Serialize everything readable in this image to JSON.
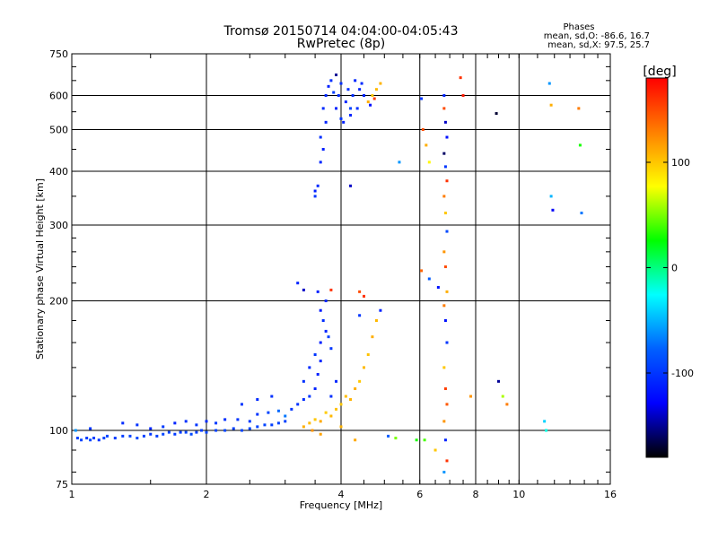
{
  "chart_data": {
    "type": "scatter",
    "title": "Tromsø 20150714 04:04:00-04:05:43",
    "subtitle": "RwPretec (8p)",
    "xlabel": "Frequency [MHz]",
    "ylabel": "Stationary phase Virtual Height [km]",
    "x_scale": "log",
    "y_scale": "log",
    "xlim": [
      1,
      16
    ],
    "ylim": [
      75,
      750
    ],
    "x_ticks": [
      1,
      2,
      4,
      6,
      8,
      10,
      16
    ],
    "x_tick_labels": [
      "1",
      "2",
      "4",
      "6",
      "8",
      "10",
      "16"
    ],
    "y_ticks": [
      75,
      100,
      200,
      300,
      400,
      500,
      600,
      750
    ],
    "y_tick_labels": [
      "75",
      "100",
      "200",
      "300",
      "400",
      "500",
      "600",
      "750"
    ],
    "grid": true,
    "phase_box": {
      "title": "Phases",
      "line_o": "mean, sd,O: -86.6, 16.7",
      "line_x": "mean, sd,X:  97.5, 25.7"
    },
    "colorbar": {
      "label": "[deg]",
      "range": [
        -180,
        180
      ],
      "ticks": [
        100,
        0,
        -100
      ],
      "tick_labels": [
        "100",
        "0",
        "-100"
      ],
      "colors": [
        "#ff0000",
        "#ff8000",
        "#ffff00",
        "#00ff00",
        "#00ffff",
        "#0060ff",
        "#0000ff",
        "#000000"
      ]
    },
    "series": [
      {
        "points": [
          [
            1.03,
            96,
            -95
          ],
          [
            1.05,
            95,
            -92
          ],
          [
            1.08,
            96,
            -98
          ],
          [
            1.1,
            95,
            -90
          ],
          [
            1.12,
            96,
            -96
          ],
          [
            1.15,
            95,
            -100
          ],
          [
            1.18,
            96,
            -94
          ],
          [
            1.2,
            97,
            -92
          ],
          [
            1.25,
            96,
            -98
          ],
          [
            1.3,
            97,
            -96
          ],
          [
            1.35,
            97,
            -93
          ],
          [
            1.4,
            96,
            -90
          ],
          [
            1.45,
            97,
            -95
          ],
          [
            1.5,
            98,
            -100
          ],
          [
            1.55,
            97,
            -96
          ],
          [
            1.6,
            98,
            -92
          ],
          [
            1.65,
            99,
            -94
          ],
          [
            1.7,
            98,
            -98
          ],
          [
            1.75,
            99,
            -96
          ],
          [
            1.8,
            99,
            -92
          ],
          [
            1.85,
            98,
            -90
          ],
          [
            1.9,
            99,
            -95
          ],
          [
            1.95,
            100,
            -97
          ],
          [
            2.0,
            99,
            -92
          ],
          [
            2.1,
            100,
            -94
          ],
          [
            2.2,
            100,
            -91
          ],
          [
            2.3,
            101,
            -95
          ],
          [
            2.4,
            100,
            -92
          ],
          [
            2.5,
            101,
            -90
          ],
          [
            2.6,
            102,
            -94
          ],
          [
            2.7,
            103,
            -92
          ],
          [
            2.8,
            103,
            -96
          ],
          [
            2.9,
            104,
            -93
          ],
          [
            3.0,
            105,
            -95
          ],
          [
            1.02,
            100,
            -60
          ],
          [
            1.1,
            101,
            -100
          ],
          [
            1.3,
            104,
            -105
          ],
          [
            1.4,
            103,
            -102
          ],
          [
            1.5,
            101,
            -108
          ],
          [
            1.6,
            102,
            -98
          ],
          [
            1.7,
            104,
            -110
          ],
          [
            1.8,
            105,
            -103
          ],
          [
            1.9,
            103,
            -100
          ],
          [
            2.0,
            105,
            -106
          ],
          [
            2.1,
            104,
            -98
          ],
          [
            2.2,
            106,
            -104
          ],
          [
            2.35,
            106,
            -100
          ],
          [
            2.5,
            105,
            -98
          ],
          [
            2.6,
            109,
            -102
          ],
          [
            2.75,
            110,
            -92
          ],
          [
            2.9,
            111,
            -75
          ],
          [
            3.0,
            108,
            -70
          ],
          [
            3.1,
            112,
            -100
          ],
          [
            3.2,
            115,
            -102
          ],
          [
            3.3,
            118,
            -105
          ],
          [
            3.4,
            120,
            -100
          ],
          [
            3.5,
            125,
            -110
          ],
          [
            3.3,
            130,
            -103
          ],
          [
            3.4,
            140,
            -106
          ],
          [
            3.55,
            135,
            -112
          ],
          [
            3.6,
            145,
            -108
          ],
          [
            3.5,
            150,
            -100
          ],
          [
            3.6,
            160,
            -112
          ],
          [
            3.7,
            170,
            -110
          ],
          [
            3.65,
            180,
            -105
          ],
          [
            3.6,
            190,
            -115
          ],
          [
            3.7,
            200,
            -108
          ],
          [
            3.55,
            210,
            -112
          ],
          [
            3.8,
            155,
            -100
          ],
          [
            3.8,
            120,
            -104
          ],
          [
            2.4,
            115,
            -100
          ],
          [
            2.6,
            118,
            -106
          ],
          [
            2.8,
            120,
            -103
          ],
          [
            3.2,
            220,
            -110
          ],
          [
            3.75,
            165,
            -95
          ],
          [
            3.9,
            130,
            -108
          ],
          [
            3.3,
            102,
            110
          ],
          [
            3.4,
            104,
            105
          ],
          [
            3.5,
            106,
            100
          ],
          [
            3.6,
            105,
            112
          ],
          [
            3.7,
            110,
            98
          ],
          [
            3.8,
            108,
            106
          ],
          [
            3.9,
            112,
            102
          ],
          [
            4.0,
            115,
            100
          ],
          [
            4.1,
            120,
            104
          ],
          [
            4.2,
            118,
            108
          ],
          [
            4.3,
            125,
            110
          ],
          [
            4.4,
            130,
            100
          ],
          [
            4.5,
            140,
            105
          ],
          [
            4.6,
            150,
            102
          ],
          [
            4.7,
            165,
            110
          ],
          [
            4.8,
            180,
            106
          ],
          [
            3.45,
            100,
            120
          ],
          [
            3.6,
            98,
            115
          ],
          [
            4.0,
            102,
            108
          ],
          [
            4.3,
            95,
            112
          ],
          [
            4.4,
            185,
            -100
          ],
          [
            4.9,
            190,
            -110
          ],
          [
            4.5,
            205,
            160
          ],
          [
            3.5,
            350,
            -100
          ],
          [
            3.55,
            370,
            -106
          ],
          [
            3.5,
            360,
            -112
          ],
          [
            3.6,
            420,
            -108
          ],
          [
            3.65,
            450,
            -112
          ],
          [
            3.6,
            480,
            -104
          ],
          [
            3.7,
            520,
            -110
          ],
          [
            3.65,
            560,
            -106
          ],
          [
            3.7,
            600,
            -108
          ],
          [
            3.75,
            630,
            -112
          ],
          [
            3.8,
            650,
            -104
          ],
          [
            3.9,
            560,
            -110
          ],
          [
            3.95,
            600,
            -106
          ],
          [
            4.0,
            640,
            -104
          ],
          [
            4.05,
            520,
            -112
          ],
          [
            4.1,
            580,
            -108
          ],
          [
            4.15,
            620,
            -104
          ],
          [
            4.2,
            540,
            -110
          ],
          [
            4.25,
            600,
            -106
          ],
          [
            4.3,
            650,
            -108
          ],
          [
            4.35,
            560,
            -104
          ],
          [
            4.4,
            620,
            -110
          ],
          [
            4.45,
            640,
            -106
          ],
          [
            4.5,
            600,
            -112
          ],
          [
            4.0,
            530,
            -100
          ],
          [
            4.2,
            560,
            -92
          ],
          [
            3.85,
            610,
            -96
          ],
          [
            4.6,
            580,
            110
          ],
          [
            4.7,
            600,
            100
          ],
          [
            4.8,
            620,
            105
          ],
          [
            4.9,
            640,
            108
          ],
          [
            4.75,
            590,
            155
          ],
          [
            4.65,
            570,
            -120
          ],
          [
            3.9,
            670,
            -150
          ],
          [
            4.2,
            370,
            -140
          ],
          [
            5.4,
            420,
            -60
          ],
          [
            6.05,
            590,
            -100
          ],
          [
            6.1,
            500,
            150
          ],
          [
            6.2,
            460,
            110
          ],
          [
            6.3,
            420,
            80
          ],
          [
            6.05,
            235,
            140
          ],
          [
            6.3,
            225,
            -80
          ],
          [
            6.6,
            215,
            -120
          ],
          [
            6.5,
            90,
            100
          ],
          [
            6.8,
            600,
            -110
          ],
          [
            6.8,
            560,
            150
          ],
          [
            6.85,
            520,
            -140
          ],
          [
            6.9,
            480,
            -120
          ],
          [
            6.8,
            440,
            -160
          ],
          [
            6.85,
            410,
            -100
          ],
          [
            6.9,
            380,
            160
          ],
          [
            6.8,
            350,
            130
          ],
          [
            6.85,
            320,
            100
          ],
          [
            6.9,
            290,
            -90
          ],
          [
            6.8,
            260,
            120
          ],
          [
            6.85,
            240,
            150
          ],
          [
            6.9,
            210,
            110
          ],
          [
            6.8,
            195,
            130
          ],
          [
            6.85,
            180,
            -120
          ],
          [
            6.9,
            160,
            -100
          ],
          [
            6.8,
            140,
            100
          ],
          [
            6.85,
            125,
            155
          ],
          [
            6.9,
            115,
            145
          ],
          [
            6.8,
            105,
            120
          ],
          [
            6.85,
            95,
            -110
          ],
          [
            6.9,
            85,
            160
          ],
          [
            6.8,
            80,
            -60
          ],
          [
            7.4,
            660,
            160
          ],
          [
            7.5,
            600,
            170
          ],
          [
            7.8,
            120,
            120
          ],
          [
            8.9,
            545,
            -170
          ],
          [
            9.0,
            130,
            -150
          ],
          [
            9.2,
            120,
            60
          ],
          [
            9.4,
            115,
            130
          ],
          [
            11.4,
            105,
            -40
          ],
          [
            11.5,
            100,
            -20
          ],
          [
            11.7,
            640,
            -60
          ],
          [
            11.8,
            570,
            110
          ],
          [
            11.8,
            350,
            -50
          ],
          [
            11.9,
            325,
            -130
          ],
          [
            13.6,
            560,
            130
          ],
          [
            13.7,
            460,
            30
          ],
          [
            13.8,
            320,
            -70
          ],
          [
            5.9,
            95,
            30
          ],
          [
            6.15,
            95,
            40
          ],
          [
            5.3,
            96,
            50
          ],
          [
            5.1,
            97,
            -80
          ],
          [
            3.3,
            212,
            -140
          ],
          [
            3.8,
            212,
            160
          ],
          [
            4.4,
            210,
            150
          ]
        ]
      }
    ]
  }
}
